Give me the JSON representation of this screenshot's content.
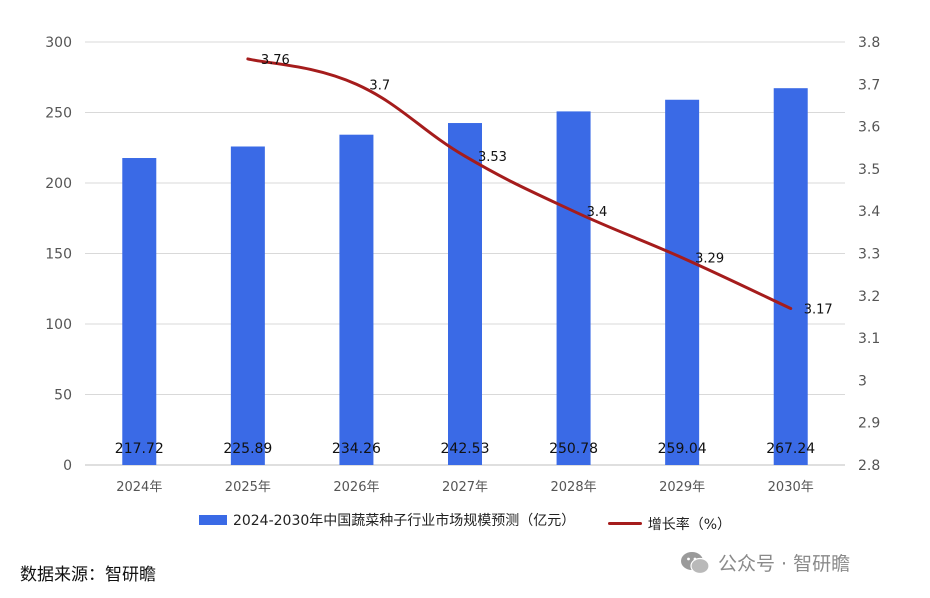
{
  "chart_data": {
    "type": "bar+line",
    "categories": [
      "2024年",
      "2025年",
      "2026年",
      "2027年",
      "2028年",
      "2029年",
      "2030年"
    ],
    "series": [
      {
        "name": "2024-2030年中国蔬菜种子行业市场规模预测（亿元）",
        "type": "bar",
        "axis": "left",
        "values": [
          217.72,
          225.89,
          234.26,
          242.53,
          250.78,
          259.04,
          267.24
        ],
        "value_labels": [
          "217.72",
          "225.89",
          "234.26",
          "242.53",
          "250.78",
          "259.04",
          "267.24"
        ],
        "color": "#3a6ae6"
      },
      {
        "name": "增长率（%）",
        "type": "line",
        "axis": "right",
        "values": [
          null,
          3.76,
          3.7,
          3.53,
          3.4,
          3.29,
          3.17
        ],
        "value_labels": [
          null,
          "3.76",
          "3.7",
          "3.53",
          "3.4",
          "3.29",
          "3.17"
        ],
        "color": "#a51c1c"
      }
    ],
    "y_left": {
      "min": 0,
      "max": 300,
      "ticks": [
        "0",
        "50",
        "100",
        "150",
        "200",
        "250",
        "300"
      ]
    },
    "y_right": {
      "min": 2.8,
      "max": 3.8,
      "ticks": [
        "2.8",
        "2.9",
        "3",
        "3.1",
        "3.2",
        "3.3",
        "3.4",
        "3.5",
        "3.6",
        "3.7",
        "3.8"
      ]
    },
    "grid": true,
    "legend_position": "bottom"
  },
  "legend": {
    "bar_label": "2024-2030年中国蔬菜种子行业市场规模预测（亿元）",
    "line_label": "增长率（%）"
  },
  "footer": {
    "source": "数据来源：智研瞻",
    "watermark": "公众号 · 智研瞻",
    "watermark_icon": "wechat-icon"
  }
}
